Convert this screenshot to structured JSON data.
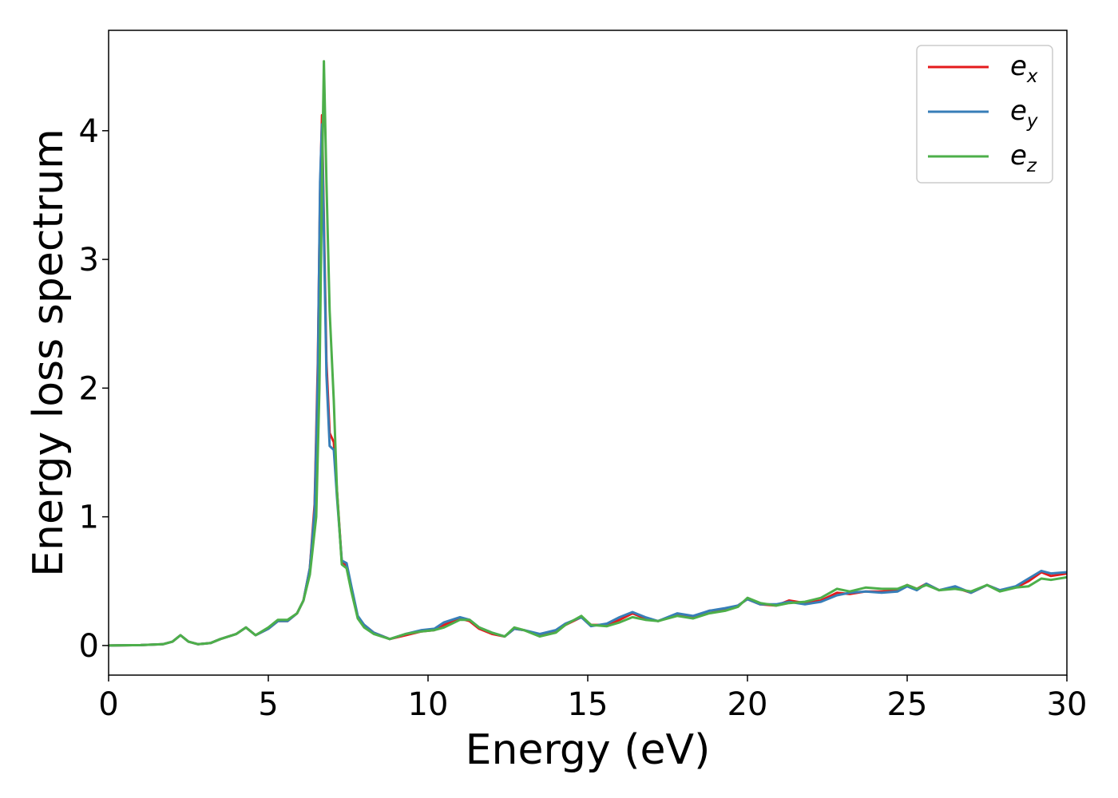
{
  "chart_data": {
    "type": "line",
    "xlabel": "Energy (eV)",
    "ylabel": "Energy loss spectrum",
    "xlim": [
      0,
      30
    ],
    "ylim": [
      -0.23,
      4.78
    ],
    "xticks": [
      "0",
      "5",
      "10",
      "15",
      "20",
      "25",
      "30"
    ],
    "yticks": [
      "0",
      "1",
      "2",
      "3",
      "4"
    ],
    "grid": false,
    "legend_position": "top-right",
    "series": [
      {
        "name": "e_x",
        "label_base": "e",
        "label_sub": "x",
        "color": "#e41a1c",
        "points": [
          [
            0,
            0
          ],
          [
            1,
            0.003
          ],
          [
            1.7,
            0.01
          ],
          [
            2.0,
            0.03
          ],
          [
            2.25,
            0.08
          ],
          [
            2.5,
            0.03
          ],
          [
            2.8,
            0.01
          ],
          [
            3.2,
            0.02
          ],
          [
            3.5,
            0.05
          ],
          [
            4.0,
            0.09
          ],
          [
            4.3,
            0.14
          ],
          [
            4.6,
            0.08
          ],
          [
            5.0,
            0.13
          ],
          [
            5.3,
            0.19
          ],
          [
            5.6,
            0.19
          ],
          [
            5.9,
            0.25
          ],
          [
            6.1,
            0.35
          ],
          [
            6.3,
            0.6
          ],
          [
            6.45,
            1.1
          ],
          [
            6.55,
            2.2
          ],
          [
            6.62,
            3.5
          ],
          [
            6.68,
            4.12
          ],
          [
            6.74,
            3.3
          ],
          [
            6.82,
            2.2
          ],
          [
            6.92,
            1.65
          ],
          [
            7.05,
            1.58
          ],
          [
            7.15,
            1.2
          ],
          [
            7.3,
            0.65
          ],
          [
            7.45,
            0.62
          ],
          [
            7.6,
            0.45
          ],
          [
            7.8,
            0.22
          ],
          [
            8.0,
            0.16
          ],
          [
            8.3,
            0.1
          ],
          [
            8.8,
            0.05
          ],
          [
            9.3,
            0.08
          ],
          [
            9.8,
            0.11
          ],
          [
            10.2,
            0.12
          ],
          [
            10.5,
            0.16
          ],
          [
            11.0,
            0.21
          ],
          [
            11.3,
            0.19
          ],
          [
            11.6,
            0.13
          ],
          [
            12.0,
            0.09
          ],
          [
            12.4,
            0.07
          ],
          [
            12.7,
            0.13
          ],
          [
            13.0,
            0.12
          ],
          [
            13.5,
            0.08
          ],
          [
            14.0,
            0.11
          ],
          [
            14.3,
            0.16
          ],
          [
            14.8,
            0.22
          ],
          [
            15.1,
            0.16
          ],
          [
            15.6,
            0.16
          ],
          [
            16.0,
            0.2
          ],
          [
            16.4,
            0.25
          ],
          [
            16.8,
            0.21
          ],
          [
            17.2,
            0.19
          ],
          [
            17.8,
            0.24
          ],
          [
            18.3,
            0.22
          ],
          [
            18.8,
            0.27
          ],
          [
            19.3,
            0.28
          ],
          [
            19.7,
            0.31
          ],
          [
            20.0,
            0.36
          ],
          [
            20.4,
            0.32
          ],
          [
            20.9,
            0.31
          ],
          [
            21.3,
            0.35
          ],
          [
            21.8,
            0.33
          ],
          [
            22.3,
            0.35
          ],
          [
            22.8,
            0.41
          ],
          [
            23.2,
            0.4
          ],
          [
            23.7,
            0.42
          ],
          [
            24.2,
            0.42
          ],
          [
            24.7,
            0.43
          ],
          [
            25.0,
            0.47
          ],
          [
            25.3,
            0.44
          ],
          [
            25.6,
            0.48
          ],
          [
            26.0,
            0.43
          ],
          [
            26.5,
            0.45
          ],
          [
            27.0,
            0.41
          ],
          [
            27.5,
            0.47
          ],
          [
            27.9,
            0.43
          ],
          [
            28.4,
            0.45
          ],
          [
            28.8,
            0.5
          ],
          [
            29.2,
            0.57
          ],
          [
            29.5,
            0.54
          ],
          [
            30.0,
            0.56
          ]
        ]
      },
      {
        "name": "e_y",
        "label_base": "e",
        "label_sub": "y",
        "color": "#377eb8",
        "points": [
          [
            0,
            0
          ],
          [
            1,
            0.003
          ],
          [
            1.7,
            0.01
          ],
          [
            2.0,
            0.03
          ],
          [
            2.25,
            0.08
          ],
          [
            2.5,
            0.03
          ],
          [
            2.8,
            0.01
          ],
          [
            3.2,
            0.02
          ],
          [
            3.5,
            0.05
          ],
          [
            4.0,
            0.09
          ],
          [
            4.3,
            0.14
          ],
          [
            4.6,
            0.08
          ],
          [
            5.0,
            0.13
          ],
          [
            5.3,
            0.19
          ],
          [
            5.6,
            0.19
          ],
          [
            5.9,
            0.25
          ],
          [
            6.1,
            0.35
          ],
          [
            6.3,
            0.6
          ],
          [
            6.45,
            1.05
          ],
          [
            6.55,
            2.1
          ],
          [
            6.62,
            3.6
          ],
          [
            6.68,
            4.05
          ],
          [
            6.74,
            3.2
          ],
          [
            6.82,
            2.1
          ],
          [
            6.92,
            1.55
          ],
          [
            7.05,
            1.52
          ],
          [
            7.15,
            1.15
          ],
          [
            7.3,
            0.66
          ],
          [
            7.45,
            0.64
          ],
          [
            7.6,
            0.46
          ],
          [
            7.8,
            0.23
          ],
          [
            8.0,
            0.16
          ],
          [
            8.3,
            0.1
          ],
          [
            8.8,
            0.05
          ],
          [
            9.3,
            0.09
          ],
          [
            9.8,
            0.12
          ],
          [
            10.2,
            0.13
          ],
          [
            10.5,
            0.18
          ],
          [
            11.0,
            0.22
          ],
          [
            11.3,
            0.2
          ],
          [
            11.6,
            0.14
          ],
          [
            12.0,
            0.1
          ],
          [
            12.4,
            0.07
          ],
          [
            12.7,
            0.13
          ],
          [
            13.0,
            0.12
          ],
          [
            13.5,
            0.09
          ],
          [
            14.0,
            0.12
          ],
          [
            14.3,
            0.17
          ],
          [
            14.8,
            0.22
          ],
          [
            15.1,
            0.15
          ],
          [
            15.6,
            0.17
          ],
          [
            16.0,
            0.22
          ],
          [
            16.4,
            0.26
          ],
          [
            16.8,
            0.22
          ],
          [
            17.2,
            0.19
          ],
          [
            17.8,
            0.25
          ],
          [
            18.3,
            0.23
          ],
          [
            18.8,
            0.27
          ],
          [
            19.3,
            0.29
          ],
          [
            19.7,
            0.31
          ],
          [
            20.0,
            0.36
          ],
          [
            20.4,
            0.32
          ],
          [
            20.9,
            0.32
          ],
          [
            21.3,
            0.34
          ],
          [
            21.8,
            0.32
          ],
          [
            22.3,
            0.34
          ],
          [
            22.8,
            0.39
          ],
          [
            23.2,
            0.41
          ],
          [
            23.7,
            0.42
          ],
          [
            24.2,
            0.41
          ],
          [
            24.7,
            0.42
          ],
          [
            25.0,
            0.46
          ],
          [
            25.3,
            0.43
          ],
          [
            25.6,
            0.48
          ],
          [
            26.0,
            0.43
          ],
          [
            26.5,
            0.46
          ],
          [
            27.0,
            0.41
          ],
          [
            27.5,
            0.47
          ],
          [
            27.9,
            0.43
          ],
          [
            28.4,
            0.46
          ],
          [
            28.8,
            0.52
          ],
          [
            29.2,
            0.58
          ],
          [
            29.5,
            0.56
          ],
          [
            30.0,
            0.57
          ]
        ]
      },
      {
        "name": "e_z",
        "label_base": "e",
        "label_sub": "z",
        "color": "#4daf4a",
        "points": [
          [
            0,
            0
          ],
          [
            1,
            0.003
          ],
          [
            1.7,
            0.01
          ],
          [
            2.0,
            0.03
          ],
          [
            2.25,
            0.08
          ],
          [
            2.5,
            0.03
          ],
          [
            2.8,
            0.01
          ],
          [
            3.2,
            0.02
          ],
          [
            3.5,
            0.05
          ],
          [
            4.0,
            0.09
          ],
          [
            4.3,
            0.14
          ],
          [
            4.6,
            0.08
          ],
          [
            5.0,
            0.14
          ],
          [
            5.3,
            0.2
          ],
          [
            5.6,
            0.2
          ],
          [
            5.9,
            0.25
          ],
          [
            6.1,
            0.35
          ],
          [
            6.3,
            0.55
          ],
          [
            6.5,
            1.0
          ],
          [
            6.6,
            2.0
          ],
          [
            6.68,
            3.6
          ],
          [
            6.74,
            4.54
          ],
          [
            6.82,
            3.6
          ],
          [
            6.92,
            2.6
          ],
          [
            7.05,
            1.9
          ],
          [
            7.15,
            1.2
          ],
          [
            7.3,
            0.63
          ],
          [
            7.45,
            0.6
          ],
          [
            7.6,
            0.42
          ],
          [
            7.8,
            0.21
          ],
          [
            8.0,
            0.14
          ],
          [
            8.3,
            0.09
          ],
          [
            8.8,
            0.05
          ],
          [
            9.3,
            0.09
          ],
          [
            9.8,
            0.11
          ],
          [
            10.2,
            0.12
          ],
          [
            10.5,
            0.14
          ],
          [
            11.0,
            0.2
          ],
          [
            11.3,
            0.2
          ],
          [
            11.6,
            0.14
          ],
          [
            12.0,
            0.1
          ],
          [
            12.4,
            0.07
          ],
          [
            12.7,
            0.14
          ],
          [
            13.0,
            0.12
          ],
          [
            13.5,
            0.07
          ],
          [
            14.0,
            0.1
          ],
          [
            14.3,
            0.16
          ],
          [
            14.8,
            0.23
          ],
          [
            15.1,
            0.16
          ],
          [
            15.6,
            0.15
          ],
          [
            16.0,
            0.18
          ],
          [
            16.4,
            0.22
          ],
          [
            16.8,
            0.2
          ],
          [
            17.2,
            0.19
          ],
          [
            17.8,
            0.23
          ],
          [
            18.3,
            0.21
          ],
          [
            18.8,
            0.25
          ],
          [
            19.3,
            0.27
          ],
          [
            19.7,
            0.3
          ],
          [
            20.0,
            0.37
          ],
          [
            20.4,
            0.33
          ],
          [
            20.9,
            0.31
          ],
          [
            21.3,
            0.33
          ],
          [
            21.8,
            0.34
          ],
          [
            22.3,
            0.37
          ],
          [
            22.8,
            0.44
          ],
          [
            23.2,
            0.42
          ],
          [
            23.7,
            0.45
          ],
          [
            24.2,
            0.44
          ],
          [
            24.7,
            0.44
          ],
          [
            25.0,
            0.47
          ],
          [
            25.3,
            0.44
          ],
          [
            25.6,
            0.47
          ],
          [
            26.0,
            0.43
          ],
          [
            26.5,
            0.44
          ],
          [
            27.0,
            0.42
          ],
          [
            27.5,
            0.47
          ],
          [
            27.9,
            0.42
          ],
          [
            28.4,
            0.45
          ],
          [
            28.8,
            0.46
          ],
          [
            29.2,
            0.52
          ],
          [
            29.5,
            0.51
          ],
          [
            30.0,
            0.53
          ]
        ]
      }
    ]
  }
}
